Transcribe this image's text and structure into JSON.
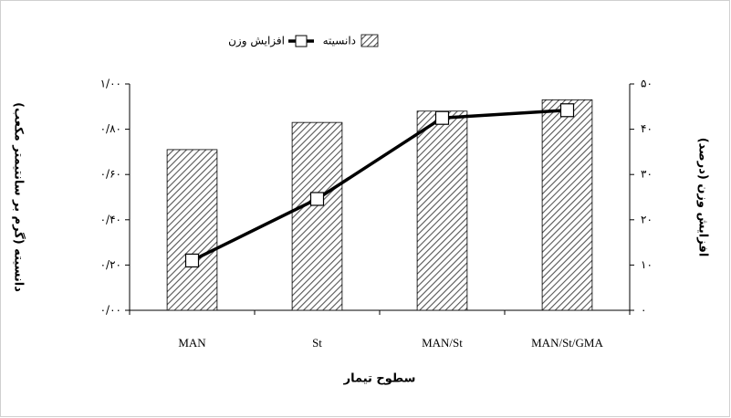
{
  "chart_data": {
    "type": "combo",
    "categories": [
      "MAN",
      "St",
      "MAN/St",
      "MAN/St/GMA"
    ],
    "series": [
      {
        "name": "دانسیته",
        "kind": "bar",
        "color": "#555555",
        "values": [
          0.71,
          0.83,
          0.88,
          0.93
        ]
      },
      {
        "name": "افزایش وزن",
        "kind": "line",
        "axis": "y2",
        "color": "#000000",
        "values": [
          11,
          24.6,
          42.5,
          44.2
        ]
      }
    ],
    "ylim": [
      0,
      1
    ],
    "yticks": [
      {
        "value": 0,
        "label": "۰/۰۰"
      },
      {
        "value": 0.2,
        "label": "۰/۲۰"
      },
      {
        "value": 0.4,
        "label": "۰/۴۰"
      },
      {
        "value": 0.6,
        "label": "۰/۶۰"
      },
      {
        "value": 0.8,
        "label": "۰/۸۰"
      },
      {
        "value": 1,
        "label": "۱/۰۰"
      }
    ],
    "y2lim": [
      0,
      50
    ],
    "y2ticks": [
      {
        "value": 0,
        "label": "۰"
      },
      {
        "value": 10,
        "label": "۱۰"
      },
      {
        "value": 20,
        "label": "۲۰"
      },
      {
        "value": 30,
        "label": "۳۰"
      },
      {
        "value": 40,
        "label": "۴۰"
      },
      {
        "value": 50,
        "label": "۵۰"
      }
    ],
    "ylabel": "دانسیته (گرم بر سانتیمتر مکعب)",
    "y2label": "افزایش وزن (درصد)",
    "xlabel": "سطوح تیمار",
    "grid": false
  }
}
